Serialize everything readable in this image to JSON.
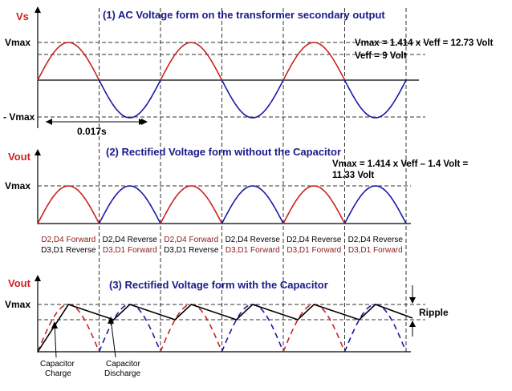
{
  "colors": {
    "red": "#cc2222",
    "blue": "#1a1aa8",
    "darkred": "#8b1a1a",
    "navy": "#1a1a8c",
    "black": "#000000",
    "dashed_line": "#333333"
  },
  "panel1": {
    "title": "(1)  AC Voltage form on the transformer secondary output",
    "axis_label": "Vs",
    "vmax_label": "Vmax",
    "neg_vmax_label": "- Vmax",
    "vmax_eq": "Vmax = 1.414 x Veff = 12.73 Volt",
    "veff_eq": "Veff = 9 Volt",
    "period_label": "0.017s"
  },
  "panel2": {
    "title": "(2)  Rectified Voltage form without the Capacitor",
    "axis_label": "Vout",
    "vmax_label": "Vmax",
    "eq_line1": "Vmax = 1.414 x Veff – 1.4 Volt =",
    "eq_line2": "11.33 Volt",
    "diode_states": [
      {
        "line1": "D2,D4 Forward",
        "line2": "D3,D1 Reverse",
        "forward_line": 1
      },
      {
        "line1": "D2,D4 Reverse",
        "line2": "D3,D1 Forward",
        "forward_line": 2
      },
      {
        "line1": "D2,D4 Forward",
        "line2": "D3,D1 Reverse",
        "forward_line": 1
      },
      {
        "line1": "D2,D4 Reverse",
        "line2": "D3,D1 Forward",
        "forward_line": 2
      },
      {
        "line1": "D2,D4 Reverse",
        "line2": "D3,D1 Forward",
        "forward_line": 2
      },
      {
        "line1": "D2,D4 Reverse",
        "line2": "D3,D1 Forward",
        "forward_line": 2
      }
    ]
  },
  "panel3": {
    "title": "(3)  Rectified Voltage form with the Capacitor",
    "axis_label": "Vout",
    "vmax_label": "Vmax",
    "ripple_label": "Ripple",
    "charge_line1": "Capacitor",
    "charge_line2": "Charge",
    "discharge_line1": "Capacitor",
    "discharge_line2": "Discharge"
  }
}
